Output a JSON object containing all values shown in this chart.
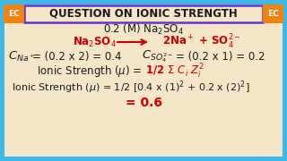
{
  "bg_color": "#f5e6c8",
  "border_color": "#6633cc",
  "header_text": "QUESTION ON IONIC STRENGTH",
  "ec_bg": "#f0820f",
  "ec_text": "EC",
  "text_color_black": "#1a1a1a",
  "text_color_red": "#cc0000",
  "arrow_color": "#cc0000",
  "outer_border_color": "#3db8e8",
  "fig_w": 3.2,
  "fig_h": 1.8,
  "dpi": 100
}
